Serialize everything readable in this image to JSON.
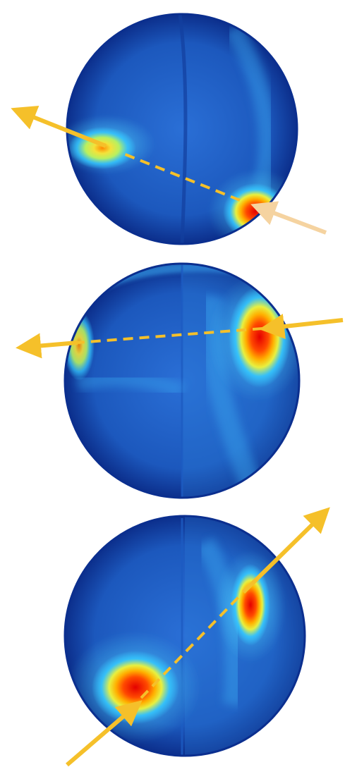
{
  "figure": {
    "kind": "three heat-mapped spheres with incoming and outgoing direction arrows",
    "colors": {
      "background": "#ffffff",
      "sphere_base": "#1f5fc4",
      "sphere_dark": "#0b2f8f",
      "cyan": "#35c8ff",
      "yellow": "#e8f040",
      "orange": "#ff8a00",
      "red": "#e80000",
      "arrow": "#f5c02a",
      "arrow_incoming_light": "#f5d3a0"
    },
    "spheres": [
      {
        "id": "sphere-top",
        "hotspots": 2,
        "arrow_style": "incoming-right-outgoing-left"
      },
      {
        "id": "sphere-middle",
        "hotspots": 2,
        "arrow_style": "incoming-right-outgoing-left"
      },
      {
        "id": "sphere-bottom",
        "hotspots": 2,
        "arrow_style": "incoming-bottom-left-outgoing-top-right"
      }
    ]
  }
}
